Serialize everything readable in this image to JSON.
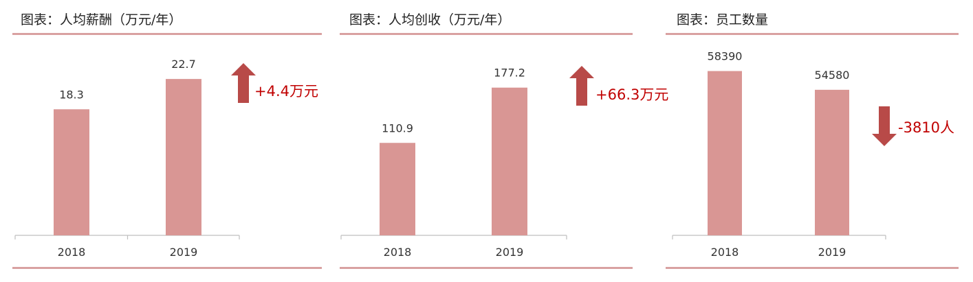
{
  "colors": {
    "bar": "#d99694",
    "arrow": "#b84a48",
    "rule": "#d9a1a1",
    "annotation": "#c00000",
    "axis": "#bfbfbf"
  },
  "chart_data": [
    {
      "type": "bar",
      "title": "图表：人均薪酬（万元/年）",
      "categories": [
        "2018",
        "2019"
      ],
      "values": [
        18.3,
        22.7
      ],
      "value_labels": [
        "18.3",
        "22.7"
      ],
      "ylim": [
        0,
        25
      ],
      "annotation": {
        "text": "+4.4万元",
        "direction": "up"
      }
    },
    {
      "type": "bar",
      "title": "图表：人均创收（万元/年）",
      "categories": [
        "2018",
        "2019"
      ],
      "values": [
        110.9,
        177.2
      ],
      "value_labels": [
        "110.9",
        "177.2"
      ],
      "ylim": [
        0,
        200
      ],
      "annotation": {
        "text": "+66.3万元",
        "direction": "up"
      }
    },
    {
      "type": "bar",
      "title": "图表：员工数量",
      "categories": [
        "2018",
        "2019"
      ],
      "values": [
        58390,
        54580
      ],
      "value_labels": [
        "58390",
        "54580"
      ],
      "ylim": [
        25000,
        60000
      ],
      "annotation": {
        "text": "-3810人",
        "direction": "down"
      }
    }
  ]
}
